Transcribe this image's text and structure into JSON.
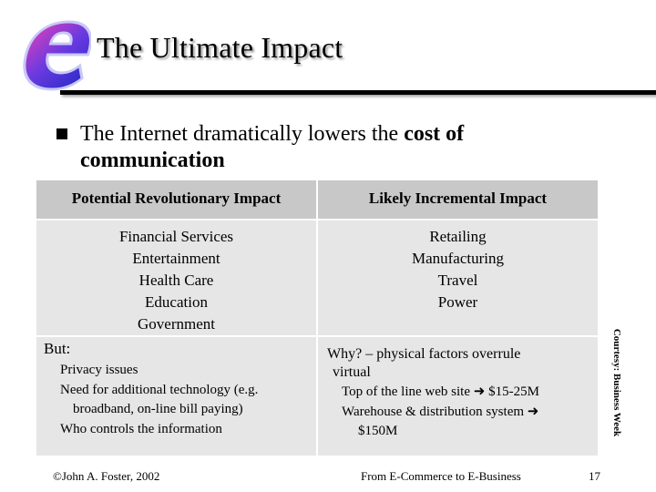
{
  "slide": {
    "title": "The Ultimate Impact",
    "logo_letter": "e",
    "intro_plain": "The Internet dramatically lowers the ",
    "intro_bold": "cost of communication"
  },
  "table": {
    "col1_header": "Potential Revolutionary Impact",
    "col2_header": "Likely Incremental Impact",
    "col1_items": [
      "Financial Services",
      "Entertainment",
      "Health Care",
      "Education",
      "Government"
    ],
    "col2_items": [
      "Retailing",
      "Manufacturing",
      "Travel",
      "Power"
    ],
    "but_label": "But:",
    "but_items": [
      "Privacy issues",
      "Need for additional technology (e.g.",
      "broadband, on-line bill paying)",
      "Who controls the information"
    ],
    "why_label": "Why? – physical factors overrule",
    "why_line2": "virtual",
    "why_item1": "Top of the line web site ",
    "why_item1_value": " $15-25M",
    "why_item2": "Warehouse & distribution system ",
    "why_item2_value": "$150M"
  },
  "courtesy": "Courtesy: Business Week",
  "footer": {
    "author": "©John A. Foster,  2002",
    "source": "From E-Commerce to E-Business",
    "page_number": "17"
  },
  "colors": {
    "cell_light": "#e6e6e6",
    "cell_dark": "#c8c8c8",
    "logo_blue": "#3a3ad8",
    "logo_purple": "#d02aa8"
  }
}
